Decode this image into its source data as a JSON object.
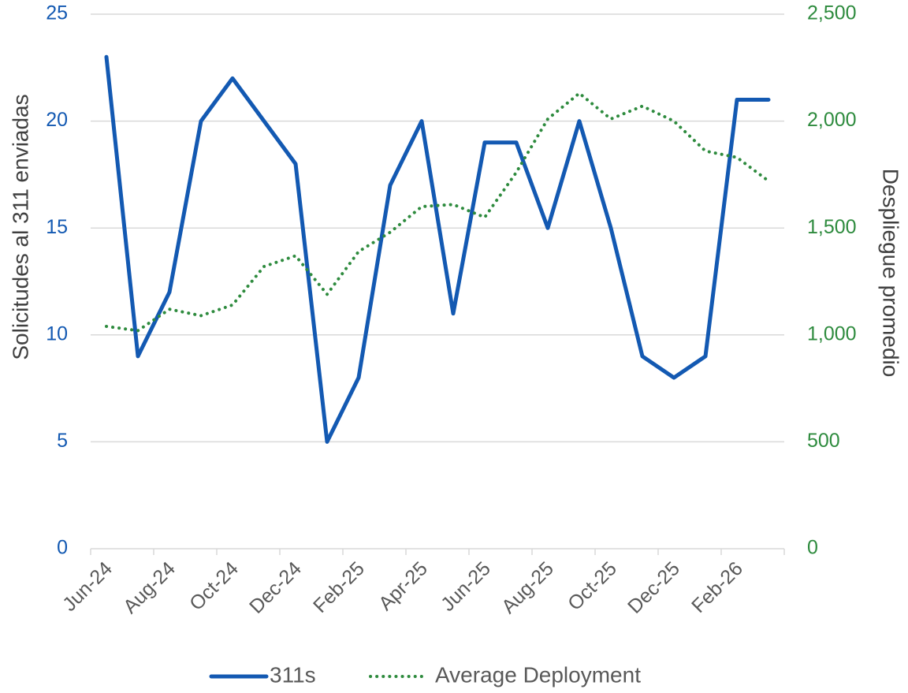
{
  "chart_data": {
    "type": "line",
    "categories": [
      "Jun-24",
      null,
      "Aug-24",
      null,
      "Oct-24",
      null,
      "Dec-24",
      null,
      "Feb-25",
      null,
      "Apr-25",
      null,
      "Jun-25",
      null,
      "Aug-25",
      null,
      "Oct-25",
      null,
      "Dec-25",
      null,
      "Feb-26",
      null
    ],
    "series": [
      {
        "name": "311s",
        "color": "#1359b2",
        "values": [
          23,
          9,
          12,
          20,
          22,
          20,
          18,
          5,
          8,
          17,
          20,
          11,
          19,
          19,
          15,
          20,
          15,
          9,
          8,
          9,
          21,
          21
        ]
      },
      {
        "name": "Average Deployment",
        "color": "#2e8b3e",
        "axis": "y2",
        "dash": "dotted",
        "values": [
          1040,
          1020,
          1120,
          1090,
          1140,
          1320,
          1370,
          1190,
          1390,
          1480,
          1600,
          1610,
          1550,
          1760,
          2010,
          2130,
          2010,
          2070,
          2000,
          1860,
          1830,
          1720
        ]
      }
    ],
    "ylabel": "Solicitudes al 311 enviadas",
    "y2label": "Despliegue promedio",
    "ylim": [
      0,
      25
    ],
    "yticks": [
      0,
      5,
      10,
      15,
      20,
      25
    ],
    "y2lim": [
      0,
      2500
    ],
    "y2ticks": [
      0,
      500,
      {
        "value": 1000,
        "label": "1,000"
      },
      {
        "value": 1500,
        "label": "1,500"
      },
      {
        "value": 2000,
        "label": "2,000"
      },
      {
        "value": 2500,
        "label": "2,500"
      }
    ],
    "grid": true,
    "legend": "bottom"
  }
}
